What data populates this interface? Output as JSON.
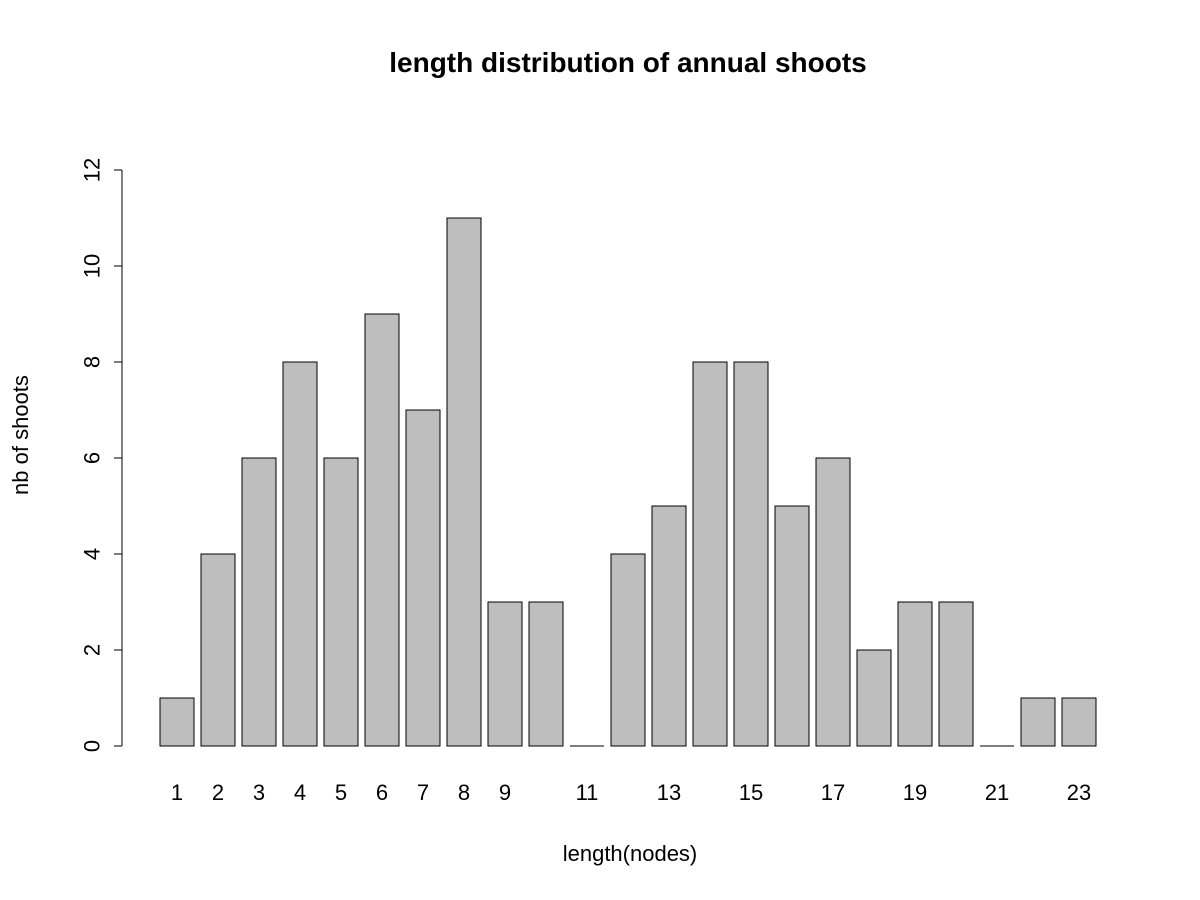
{
  "chart_data": {
    "type": "bar",
    "title": "length distribution of annual shoots",
    "xlabel": "length(nodes)",
    "ylabel": "nb of shoots",
    "categories": [
      "1",
      "2",
      "3",
      "4",
      "5",
      "6",
      "7",
      "8",
      "9",
      "10",
      "11",
      "12",
      "13",
      "14",
      "15",
      "16",
      "17",
      "18",
      "19",
      "20",
      "21",
      "22",
      "23"
    ],
    "shown_category_labels": [
      "1",
      "2",
      "3",
      "4",
      "5",
      "6",
      "7",
      "8",
      "9",
      "",
      "11",
      "",
      "13",
      "",
      "15",
      "",
      "17",
      "",
      "19",
      "",
      "21",
      "",
      "23"
    ],
    "values": [
      1,
      4,
      6,
      8,
      6,
      9,
      7,
      11,
      3,
      3,
      0,
      4,
      5,
      8,
      8,
      5,
      6,
      2,
      3,
      3,
      0,
      1,
      1
    ],
    "ylim": [
      0,
      12
    ],
    "yticks": [
      0,
      2,
      4,
      6,
      8,
      10,
      12
    ],
    "bar_color": "#bebebe",
    "grid": false
  }
}
